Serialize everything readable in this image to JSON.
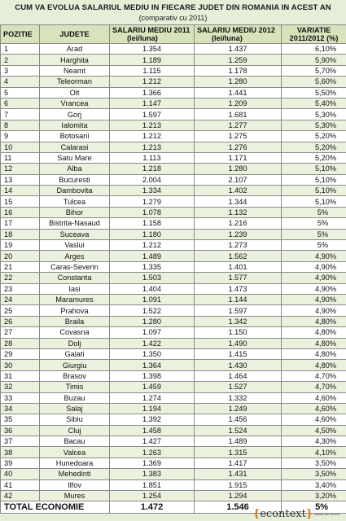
{
  "title": "CUM VA EVOLUA SALARIUL MEDIU IN FIECARE JUDET DIN ROMANIA IN ACEST AN",
  "subtitle": "(comparativ cu 2011)",
  "headers": {
    "pozitie": "POZITIE",
    "judete": "JUDETE",
    "salariu2011_line1": "SALARIU MEDIU 2011",
    "salariu2011_line2": "(lei/luna)",
    "salariu2012_line1": "SALARIU MEDIU 2012",
    "salariu2012_line2": "(lei/luna)",
    "variatie_line1": "VARIATIE",
    "variatie_line2": "2011/2012 (%)"
  },
  "rows": [
    {
      "poz": "1",
      "judet": "Arad",
      "s2011": "1.354",
      "s2012": "1.437",
      "var": "6,10%"
    },
    {
      "poz": "2",
      "judet": "Harghita",
      "s2011": "1.189",
      "s2012": "1.259",
      "var": "5,90%"
    },
    {
      "poz": "3",
      "judet": "Neamt",
      "s2011": "1.115",
      "s2012": "1.178",
      "var": "5,70%"
    },
    {
      "poz": "4",
      "judet": "Teleorman",
      "s2011": "1.212",
      "s2012": "1.280",
      "var": "5,60%"
    },
    {
      "poz": "5",
      "judet": "Olt",
      "s2011": "1.366",
      "s2012": "1.441",
      "var": "5,50%"
    },
    {
      "poz": "6",
      "judet": "Vrancea",
      "s2011": "1.147",
      "s2012": "1.209",
      "var": "5,40%"
    },
    {
      "poz": "7",
      "judet": "Gorj",
      "s2011": "1.597",
      "s2012": "1.681",
      "var": "5,30%"
    },
    {
      "poz": "8",
      "judet": "Ialomita",
      "s2011": "1.213",
      "s2012": "1.277",
      "var": "5,30%"
    },
    {
      "poz": "9",
      "judet": "Botosani",
      "s2011": "1.212",
      "s2012": "1.275",
      "var": "5,20%"
    },
    {
      "poz": "10",
      "judet": "Calarasi",
      "s2011": "1.213",
      "s2012": "1.276",
      "var": "5,20%"
    },
    {
      "poz": "11",
      "judet": "Satu Mare",
      "s2011": "1.113",
      "s2012": "1.171",
      "var": "5,20%"
    },
    {
      "poz": "12",
      "judet": "Alba",
      "s2011": "1.218",
      "s2012": "1.280",
      "var": "5,10%"
    },
    {
      "poz": "13",
      "judet": "Bucuresti",
      "s2011": "2.004",
      "s2012": "2.107",
      "var": "5,10%"
    },
    {
      "poz": "14",
      "judet": "Dambovita",
      "s2011": "1.334",
      "s2012": "1.402",
      "var": "5,10%"
    },
    {
      "poz": "15",
      "judet": "Tulcea",
      "s2011": "1.279",
      "s2012": "1.344",
      "var": "5,10%"
    },
    {
      "poz": "16",
      "judet": "Bihor",
      "s2011": "1.078",
      "s2012": "1.132",
      "var": "5%"
    },
    {
      "poz": "17",
      "judet": "Bistrita-Nasaud",
      "s2011": "1.158",
      "s2012": "1.216",
      "var": "5%"
    },
    {
      "poz": "18",
      "judet": "Suceava",
      "s2011": "1.180",
      "s2012": "1.239",
      "var": "5%"
    },
    {
      "poz": "19",
      "judet": "Vaslui",
      "s2011": "1.212",
      "s2012": "1.273",
      "var": "5%"
    },
    {
      "poz": "20",
      "judet": "Arges",
      "s2011": "1.489",
      "s2012": "1.562",
      "var": "4,90%"
    },
    {
      "poz": "21",
      "judet": "Caras-Severin",
      "s2011": "1.335",
      "s2012": "1.401",
      "var": "4,90%"
    },
    {
      "poz": "22",
      "judet": "Constanta",
      "s2011": "1.503",
      "s2012": "1.577",
      "var": "4,90%"
    },
    {
      "poz": "23",
      "judet": "Iasi",
      "s2011": "1.404",
      "s2012": "1.473",
      "var": "4,90%"
    },
    {
      "poz": "24",
      "judet": "Maramures",
      "s2011": "1.091",
      "s2012": "1.144",
      "var": "4,90%"
    },
    {
      "poz": "25",
      "judet": "Prahova",
      "s2011": "1.522",
      "s2012": "1.597",
      "var": "4,90%"
    },
    {
      "poz": "26",
      "judet": "Braila",
      "s2011": "1.280",
      "s2012": "1.342",
      "var": "4,80%"
    },
    {
      "poz": "27",
      "judet": "Covasna",
      "s2011": "1.097",
      "s2012": "1.150",
      "var": "4,80%"
    },
    {
      "poz": "28",
      "judet": "Dolj",
      "s2011": "1.422",
      "s2012": "1.490",
      "var": "4,80%"
    },
    {
      "poz": "29",
      "judet": "Galati",
      "s2011": "1.350",
      "s2012": "1.415",
      "var": "4,80%"
    },
    {
      "poz": "30",
      "judet": "Giurgiu",
      "s2011": "1.364",
      "s2012": "1.430",
      "var": "4,80%"
    },
    {
      "poz": "31",
      "judet": "Brasov",
      "s2011": "1.398",
      "s2012": "1.464",
      "var": "4,70%"
    },
    {
      "poz": "32",
      "judet": "Timis",
      "s2011": "1.459",
      "s2012": "1.527",
      "var": "4,70%"
    },
    {
      "poz": "33",
      "judet": "Buzau",
      "s2011": "1.274",
      "s2012": "1.332",
      "var": "4,60%"
    },
    {
      "poz": "34",
      "judet": "Salaj",
      "s2011": "1.194",
      "s2012": "1.249",
      "var": "4,60%"
    },
    {
      "poz": "35",
      "judet": "Sibiu",
      "s2011": "1.392",
      "s2012": "1.456",
      "var": "4,60%"
    },
    {
      "poz": "36",
      "judet": "Cluj",
      "s2011": "1.458",
      "s2012": "1.524",
      "var": "4,50%"
    },
    {
      "poz": "37",
      "judet": "Bacau",
      "s2011": "1.427",
      "s2012": "1.489",
      "var": "4,30%"
    },
    {
      "poz": "38",
      "judet": "Valcea",
      "s2011": "1.263",
      "s2012": "1.315",
      "var": "4,10%"
    },
    {
      "poz": "39",
      "judet": "Hunedoara",
      "s2011": "1.369",
      "s2012": "1.417",
      "var": "3,50%"
    },
    {
      "poz": "40",
      "judet": "Mehedinti",
      "s2011": "1.383",
      "s2012": "1.431",
      "var": "3,50%"
    },
    {
      "poz": "41",
      "judet": "Ilfov",
      "s2011": "1.851",
      "s2012": "1.915",
      "var": "3,40%"
    },
    {
      "poz": "42",
      "judet": "Mures",
      "s2011": "1.254",
      "s2012": "1.294",
      "var": "3,20%"
    }
  ],
  "total": {
    "label": "TOTAL ECONOMIE",
    "s2011": "1.472",
    "s2012": "1.546",
    "var": "5%"
  },
  "logo": {
    "open_brace": "{",
    "name": "econtext",
    "close_brace": "}",
    "tagline": "financiar bursa"
  },
  "colors": {
    "header_bg": "#d6e3bc",
    "row_alt_bg": "#eaf1dd",
    "page_bg": "#e7eed8",
    "brand_orange": "#d07a1c"
  }
}
